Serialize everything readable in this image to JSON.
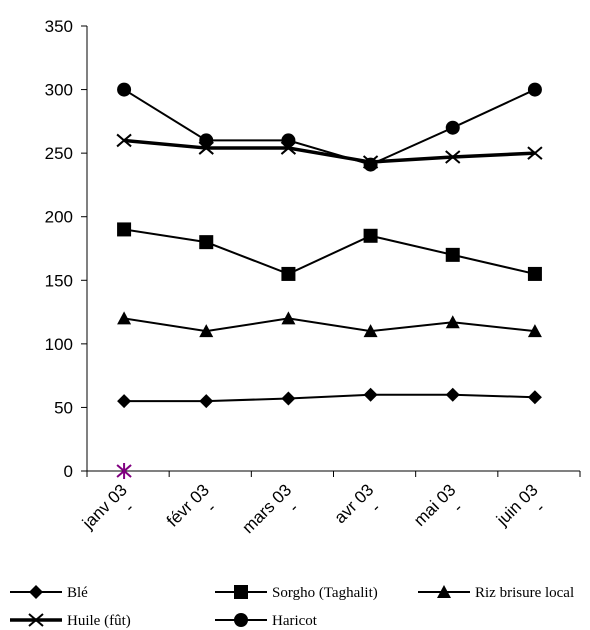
{
  "chart_data": {
    "type": "line",
    "title": "",
    "xlabel": "",
    "ylabel": "",
    "categories": [
      "janv 03",
      "févr 03",
      "mars 03",
      "avr 03",
      "mai 03",
      "juin 03"
    ],
    "tick_suffix": "-",
    "ylim": [
      0,
      350
    ],
    "yticks": [
      0,
      50,
      100,
      150,
      200,
      250,
      300,
      350
    ],
    "grid": false,
    "legend_position": "bottom",
    "series": [
      {
        "name": "Blé",
        "marker": "diamond",
        "color": "#000000",
        "values": [
          55,
          55,
          57,
          60,
          60,
          58
        ]
      },
      {
        "name": "Sorgho (Taghalit)",
        "marker": "square",
        "color": "#000000",
        "values": [
          190,
          180,
          155,
          185,
          170,
          155
        ]
      },
      {
        "name": "Riz brisure local",
        "marker": "triangle",
        "color": "#000000",
        "values": [
          120,
          110,
          120,
          110,
          117,
          110
        ]
      },
      {
        "name": "Huile (fût)",
        "marker": "x",
        "color": "#000000",
        "values": [
          260,
          254,
          254,
          243,
          247,
          250
        ]
      },
      {
        "name": "Haricot",
        "marker": "circle",
        "color": "#000000",
        "values": [
          300,
          260,
          260,
          241,
          270,
          300
        ]
      }
    ],
    "extra_point": {
      "category_index": 0,
      "value": 0,
      "marker": "asterisk",
      "color": "#800080"
    }
  }
}
